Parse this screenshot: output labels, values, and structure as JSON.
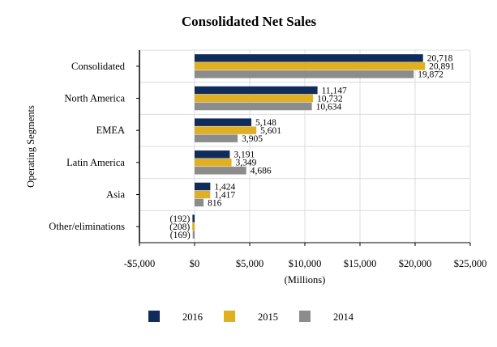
{
  "chart_data": {
    "type": "bar",
    "orientation": "horizontal",
    "title": "Consolidated Net Sales",
    "xlabel": "(Millions)",
    "ylabel": "Operating Segments",
    "xlim": [
      -5000,
      25000
    ],
    "xticks": [
      -5000,
      0,
      5000,
      10000,
      15000,
      20000,
      25000
    ],
    "xtick_labels": [
      "-$5,000",
      "$0",
      "$5,000",
      "$10,000",
      "$15,000",
      "$20,000",
      "$25,000"
    ],
    "grid": true,
    "legend_position": "bottom",
    "categories": [
      "Consolidated",
      "North America",
      "EMEA",
      "Latin America",
      "Asia",
      "Other/eliminations"
    ],
    "series": [
      {
        "name": "2016",
        "color": "#0f2c5c",
        "values": [
          20718,
          11147,
          5148,
          3191,
          1424,
          -192
        ],
        "labels": [
          "20,718",
          "11,147",
          "5,148",
          "3,191",
          "1,424",
          "(192)"
        ]
      },
      {
        "name": "2015",
        "color": "#e0b020",
        "values": [
          20891,
          10732,
          5601,
          3349,
          1417,
          -208
        ],
        "labels": [
          "20,891",
          "10,732",
          "5,601",
          "3,349",
          "1,417",
          "(208)"
        ]
      },
      {
        "name": "2014",
        "color": "#8c8c8c",
        "values": [
          19872,
          10634,
          3905,
          4686,
          816,
          -169
        ],
        "labels": [
          "19,872",
          "10,634",
          "3,905",
          "4,686",
          "816",
          "(169)"
        ]
      }
    ]
  }
}
